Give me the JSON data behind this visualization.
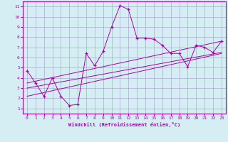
{
  "xlabel": "Windchill (Refroidissement éolien,°C)",
  "xlim": [
    -0.5,
    23.5
  ],
  "ylim": [
    0.5,
    11.5
  ],
  "xticks": [
    0,
    1,
    2,
    3,
    4,
    5,
    6,
    7,
    8,
    9,
    10,
    11,
    12,
    13,
    14,
    15,
    16,
    17,
    18,
    19,
    20,
    21,
    22,
    23
  ],
  "yticks": [
    1,
    2,
    3,
    4,
    5,
    6,
    7,
    8,
    9,
    10,
    11
  ],
  "background_color": "#d4eef4",
  "line_color": "#aa00aa",
  "grid_color": "#aaaacc",
  "line1_x": [
    0,
    1,
    2,
    3,
    4,
    5,
    6,
    7,
    8,
    9,
    10,
    11,
    12,
    13,
    14,
    15,
    16,
    17,
    18,
    19,
    20,
    21,
    22,
    23
  ],
  "line1_y": [
    4.7,
    3.5,
    2.2,
    4.0,
    2.2,
    1.3,
    1.4,
    6.4,
    5.2,
    6.6,
    9.0,
    11.1,
    10.7,
    7.9,
    7.9,
    7.8,
    7.2,
    6.4,
    6.4,
    5.1,
    7.2,
    7.0,
    6.5,
    7.6
  ],
  "line2_x": [
    0,
    23
  ],
  "line2_y": [
    3.0,
    6.5
  ],
  "line3_x": [
    0,
    23
  ],
  "line3_y": [
    2.2,
    6.4
  ],
  "line4_x": [
    0,
    23
  ],
  "line4_y": [
    3.5,
    7.6
  ]
}
